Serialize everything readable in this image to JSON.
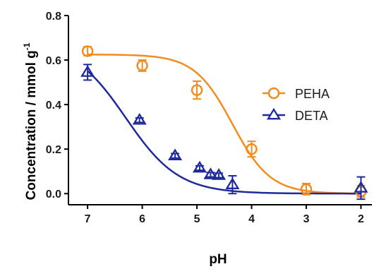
{
  "chart_data": {
    "type": "scatter",
    "title": "",
    "xlabel": "pH",
    "ylabel": "Concentration / mmol g",
    "ylabel_superscript": "-1",
    "x_reversed": true,
    "xlim": [
      7.35,
      1.8
    ],
    "ylim": [
      -0.05,
      0.8
    ],
    "xticks": [
      7,
      6,
      5,
      4,
      3,
      2
    ],
    "yticks": [
      0.0,
      0.2,
      0.4,
      0.6,
      0.8
    ],
    "ytick_labels": [
      "0.0",
      "0.2",
      "0.4",
      "0.6",
      "0.8"
    ],
    "grid": false,
    "legend_position": "right",
    "series": [
      {
        "name": "PEHA",
        "marker": "circle",
        "color": "#F28C1E",
        "points": [
          {
            "x": 7.0,
            "y": 0.64,
            "err": 0.02
          },
          {
            "x": 6.0,
            "y": 0.575,
            "err": 0.025
          },
          {
            "x": 5.0,
            "y": 0.465,
            "err": 0.04
          },
          {
            "x": 4.0,
            "y": 0.2,
            "err": 0.035
          },
          {
            "x": 3.0,
            "y": 0.02,
            "err": 0.025
          },
          {
            "x": 2.0,
            "y": 0.01,
            "err": 0.025
          }
        ],
        "fit": {
          "top": 0.625,
          "bottom": 0.0,
          "x50": 4.35,
          "slope": 1.25
        }
      },
      {
        "name": "DETA",
        "marker": "triangle",
        "color": "#1E2A9C",
        "points": [
          {
            "x": 7.0,
            "y": 0.545,
            "err": 0.035
          },
          {
            "x": 6.05,
            "y": 0.33,
            "err": 0.01
          },
          {
            "x": 5.4,
            "y": 0.17,
            "err": 0.01
          },
          {
            "x": 4.95,
            "y": 0.115,
            "err": 0.01
          },
          {
            "x": 4.75,
            "y": 0.085,
            "err": 0.01
          },
          {
            "x": 4.6,
            "y": 0.082,
            "err": 0.01
          },
          {
            "x": 4.35,
            "y": 0.04,
            "err": 0.04
          },
          {
            "x": 2.0,
            "y": 0.025,
            "err": 0.05
          }
        ],
        "fit": {
          "top": 0.68,
          "bottom": 0.0,
          "x50": 6.3,
          "slope": 0.9
        }
      }
    ]
  }
}
